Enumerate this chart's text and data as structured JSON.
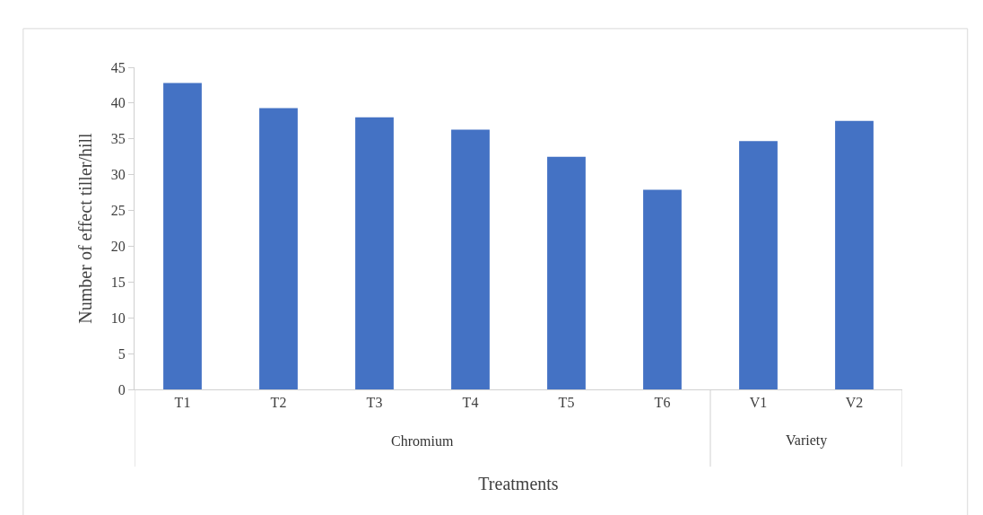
{
  "chart_data": {
    "type": "bar",
    "xlabel": "Treatments",
    "ylabel": "Number of effect tiller/hill",
    "categories": [
      "T1",
      "T2",
      "T3",
      "T4",
      "T5",
      "T6",
      "V1",
      "V2"
    ],
    "values": [
      42.8,
      39.3,
      38.0,
      36.3,
      32.5,
      27.9,
      34.7,
      37.5
    ],
    "color": "#4472c4",
    "ylim": [
      0,
      45
    ],
    "yticks": [
      0,
      5,
      10,
      15,
      20,
      25,
      30,
      35,
      40,
      45
    ],
    "legend": false,
    "annotations": [
      "Chromium",
      "Variety"
    ]
  }
}
